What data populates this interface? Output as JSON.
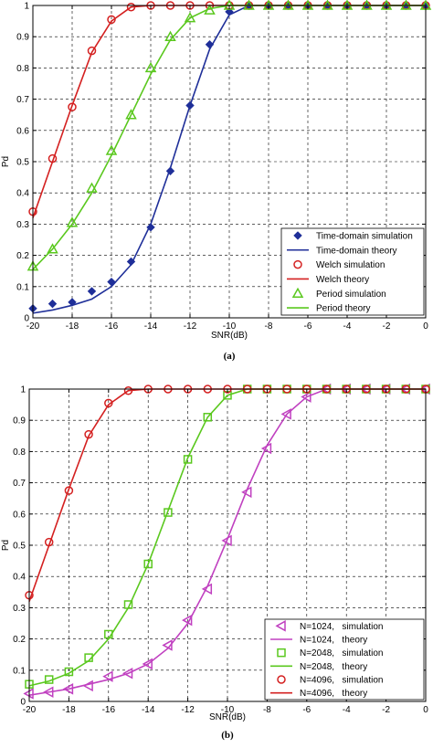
{
  "chart_data": [
    {
      "type": "line",
      "panel_label": "(a)",
      "xlabel": "SNR(dB)",
      "ylabel": "Pd",
      "xlim": [
        -20,
        0
      ],
      "ylim": [
        0,
        1
      ],
      "xticks": [
        -20,
        -18,
        -16,
        -14,
        -12,
        -10,
        -8,
        -6,
        -4,
        -2,
        0
      ],
      "yticks": [
        0,
        0.1,
        0.2,
        0.3,
        0.4,
        0.5,
        0.6,
        0.7,
        0.8,
        0.9,
        1
      ],
      "grid": true,
      "legend_position": "bottom-right",
      "series": [
        {
          "name": "Time-domain simulation",
          "kind": "markers",
          "marker": "diamond",
          "color": "#1f2f99",
          "x": [
            -20,
            -19,
            -18,
            -17,
            -16,
            -15,
            -14,
            -13,
            -12,
            -11,
            -10,
            -9,
            -8,
            -7,
            -6,
            -5,
            -4,
            -3,
            -2,
            -1,
            0
          ],
          "y": [
            0.03,
            0.045,
            0.05,
            0.085,
            0.115,
            0.18,
            0.29,
            0.47,
            0.68,
            0.875,
            0.98,
            1,
            1,
            1,
            1,
            1,
            1,
            1,
            1,
            1,
            1
          ]
        },
        {
          "name": "Time-domain theory",
          "kind": "line",
          "color": "#1f2f99",
          "x": [
            -20,
            -19,
            -18,
            -17,
            -16,
            -15,
            -14,
            -13,
            -12,
            -11,
            -10,
            -9,
            -8,
            -7,
            -6,
            -5,
            -4,
            -3,
            -2,
            -1,
            0
          ],
          "y": [
            0.015,
            0.025,
            0.04,
            0.06,
            0.1,
            0.17,
            0.3,
            0.48,
            0.68,
            0.86,
            0.97,
            1,
            1,
            1,
            1,
            1,
            1,
            1,
            1,
            1,
            1
          ]
        },
        {
          "name": "Welch simulation",
          "kind": "markers",
          "marker": "circle",
          "color": "#d42020",
          "x": [
            -20,
            -19,
            -18,
            -17,
            -16,
            -15,
            -14,
            -13,
            -12,
            -11,
            -10,
            -9,
            -8,
            -7,
            -6,
            -5,
            -4,
            -3,
            -2,
            -1,
            0
          ],
          "y": [
            0.34,
            0.51,
            0.675,
            0.855,
            0.955,
            0.995,
            1,
            1,
            1,
            1,
            1,
            1,
            1,
            1,
            1,
            1,
            1,
            1,
            1,
            1,
            1
          ]
        },
        {
          "name": "Welch theory",
          "kind": "line",
          "color": "#d42020",
          "x": [
            -20,
            -19,
            -18,
            -17,
            -16,
            -15,
            -14,
            -13,
            -12,
            -11,
            -10,
            -9,
            -8,
            -7,
            -6,
            -5,
            -4,
            -3,
            -2,
            -1,
            0
          ],
          "y": [
            0.32,
            0.5,
            0.68,
            0.85,
            0.95,
            0.995,
            1,
            1,
            1,
            1,
            1,
            1,
            1,
            1,
            1,
            1,
            1,
            1,
            1,
            1,
            1
          ]
        },
        {
          "name": "Period simulation",
          "kind": "markers",
          "marker": "triangle",
          "color": "#5ac81e",
          "x": [
            -20,
            -19,
            -18,
            -17,
            -16,
            -15,
            -14,
            -13,
            -12,
            -11,
            -10,
            -9,
            -8,
            -7,
            -6,
            -5,
            -4,
            -3,
            -2,
            -1,
            0
          ],
          "y": [
            0.165,
            0.22,
            0.305,
            0.415,
            0.535,
            0.65,
            0.8,
            0.9,
            0.96,
            0.985,
            1,
            1,
            1,
            1,
            1,
            1,
            1,
            1,
            1,
            1,
            1
          ]
        },
        {
          "name": "Period theory",
          "kind": "line",
          "color": "#5ac81e",
          "x": [
            -20,
            -19,
            -18,
            -17,
            -16,
            -15,
            -14,
            -13,
            -12,
            -11,
            -10,
            -9,
            -8,
            -7,
            -6,
            -5,
            -4,
            -3,
            -2,
            -1,
            0
          ],
          "y": [
            0.155,
            0.22,
            0.3,
            0.4,
            0.52,
            0.65,
            0.78,
            0.89,
            0.96,
            0.99,
            1,
            1,
            1,
            1,
            1,
            1,
            1,
            1,
            1,
            1,
            1
          ]
        }
      ]
    },
    {
      "type": "line",
      "panel_label": "(b)",
      "xlabel": "SNR(dB)",
      "ylabel": "Pd",
      "xlim": [
        -20,
        0
      ],
      "ylim": [
        0,
        1
      ],
      "xticks": [
        -20,
        -18,
        -16,
        -14,
        -12,
        -10,
        -8,
        -6,
        -4,
        -2,
        0
      ],
      "yticks": [
        0,
        0.1,
        0.2,
        0.3,
        0.4,
        0.5,
        0.6,
        0.7,
        0.8,
        0.9,
        1
      ],
      "grid": true,
      "legend_position": "bottom-right",
      "series": [
        {
          "name": "N=1024,   simulation",
          "kind": "markers",
          "marker": "triangle-left",
          "color": "#c040c0",
          "x": [
            -20,
            -19,
            -18,
            -17,
            -16,
            -15,
            -14,
            -13,
            -12,
            -11,
            -10,
            -9,
            -8,
            -7,
            -6,
            -5,
            -4,
            -3,
            -2,
            -1,
            0
          ],
          "y": [
            0.025,
            0.03,
            0.04,
            0.05,
            0.08,
            0.09,
            0.12,
            0.18,
            0.26,
            0.36,
            0.515,
            0.67,
            0.81,
            0.92,
            0.975,
            1,
            1,
            1,
            1,
            1,
            1
          ]
        },
        {
          "name": "N=1024,   theory",
          "kind": "line",
          "color": "#c040c0",
          "x": [
            -20,
            -19,
            -18,
            -17,
            -16,
            -15,
            -14,
            -13,
            -12,
            -11,
            -10,
            -9,
            -8,
            -7,
            -6,
            -5,
            -4,
            -3,
            -2,
            -1,
            0
          ],
          "y": [
            0.02,
            0.03,
            0.04,
            0.055,
            0.07,
            0.09,
            0.12,
            0.17,
            0.25,
            0.37,
            0.52,
            0.68,
            0.82,
            0.92,
            0.975,
            1,
            1,
            1,
            1,
            1,
            1
          ]
        },
        {
          "name": "N=2048,   simulation",
          "kind": "markers",
          "marker": "square",
          "color": "#5ac81e",
          "x": [
            -20,
            -19,
            -18,
            -17,
            -16,
            -15,
            -14,
            -13,
            -12,
            -11,
            -10,
            -9,
            -8,
            -7,
            -6,
            -5,
            -4,
            -3,
            -2,
            -1,
            0
          ],
          "y": [
            0.055,
            0.07,
            0.095,
            0.14,
            0.215,
            0.31,
            0.44,
            0.605,
            0.775,
            0.91,
            0.98,
            1,
            1,
            1,
            1,
            1,
            1,
            1,
            1,
            1,
            1
          ]
        },
        {
          "name": "N=2048,   theory",
          "kind": "line",
          "color": "#5ac81e",
          "x": [
            -20,
            -19,
            -18,
            -17,
            -16,
            -15,
            -14,
            -13,
            -12,
            -11,
            -10,
            -9,
            -8,
            -7,
            -6,
            -5,
            -4,
            -3,
            -2,
            -1,
            0
          ],
          "y": [
            0.05,
            0.065,
            0.09,
            0.13,
            0.2,
            0.3,
            0.44,
            0.61,
            0.78,
            0.91,
            0.98,
            1,
            1,
            1,
            1,
            1,
            1,
            1,
            1,
            1,
            1
          ]
        },
        {
          "name": "N=4096,   simulation",
          "kind": "markers",
          "marker": "circle",
          "color": "#d42020",
          "x": [
            -20,
            -19,
            -18,
            -17,
            -16,
            -15,
            -14,
            -13,
            -12,
            -11,
            -10,
            -9,
            -8,
            -7,
            -6,
            -5,
            -4,
            -3,
            -2,
            -1,
            0
          ],
          "y": [
            0.34,
            0.51,
            0.675,
            0.855,
            0.955,
            0.995,
            1,
            1,
            1,
            1,
            1,
            1,
            1,
            1,
            1,
            1,
            1,
            1,
            1,
            1,
            1
          ]
        },
        {
          "name": "N=4096,   theory",
          "kind": "line",
          "color": "#d42020",
          "x": [
            -20,
            -19,
            -18,
            -17,
            -16,
            -15,
            -14,
            -13,
            -12,
            -11,
            -10,
            -9,
            -8,
            -7,
            -6,
            -5,
            -4,
            -3,
            -2,
            -1,
            0
          ],
          "y": [
            0.32,
            0.5,
            0.68,
            0.85,
            0.95,
            0.995,
            1,
            1,
            1,
            1,
            1,
            1,
            1,
            1,
            1,
            1,
            1,
            1,
            1,
            1,
            1
          ]
        }
      ]
    }
  ]
}
